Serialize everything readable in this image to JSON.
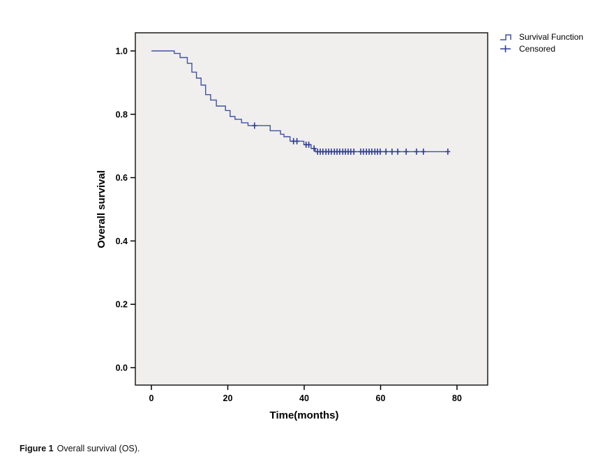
{
  "figure": {
    "caption_label": "Figure 1",
    "caption_text": "Overall survival (OS)."
  },
  "chart_data": {
    "type": "line",
    "subtype": "kaplan-meier-step",
    "title": "",
    "xlabel": "Time(months)",
    "ylabel": "Overall survival",
    "xlim": [
      -4,
      88
    ],
    "ylim": [
      -0.05,
      1.06
    ],
    "xticks": [
      0,
      20,
      40,
      60,
      80
    ],
    "xtick_labels": [
      "0",
      "20",
      "40",
      "60",
      "80"
    ],
    "yticks": [
      0.0,
      0.2,
      0.4,
      0.6,
      0.8,
      1.0
    ],
    "ytick_labels": [
      "0.0",
      "0.2",
      "0.4",
      "0.6",
      "0.8",
      "1.0"
    ],
    "grid": "off",
    "legend_position": "outside-top-right",
    "legend": [
      {
        "label": "Survival Function",
        "marker": "step-line"
      },
      {
        "label": "Censored",
        "marker": "plus"
      }
    ],
    "line_color": "#3f51a3",
    "censor_color": "#2e3c96",
    "plot_bg": "#f0efee",
    "frame_color": "#1c1c1c",
    "survival_steps": [
      [
        0,
        1.0
      ],
      [
        6.0,
        0.992
      ],
      [
        7.5,
        0.979
      ],
      [
        9.4,
        0.961
      ],
      [
        10.6,
        0.933
      ],
      [
        11.8,
        0.914
      ],
      [
        13.0,
        0.892
      ],
      [
        14.2,
        0.862
      ],
      [
        15.5,
        0.845
      ],
      [
        17.0,
        0.826
      ],
      [
        19.4,
        0.812
      ],
      [
        20.6,
        0.793
      ],
      [
        21.9,
        0.784
      ],
      [
        23.6,
        0.773
      ],
      [
        25.3,
        0.764
      ],
      [
        31.1,
        0.748
      ],
      [
        33.8,
        0.737
      ],
      [
        34.7,
        0.729
      ],
      [
        36.3,
        0.715
      ],
      [
        39.9,
        0.704
      ],
      [
        41.8,
        0.692
      ],
      [
        42.9,
        0.682
      ]
    ],
    "curve_end_time": 77.6,
    "censored": [
      [
        27.0,
        0.764
      ],
      [
        37.2,
        0.715
      ],
      [
        38.1,
        0.715
      ],
      [
        40.5,
        0.704
      ],
      [
        41.2,
        0.704
      ],
      [
        42.6,
        0.692
      ],
      [
        43.5,
        0.682
      ],
      [
        44.2,
        0.682
      ],
      [
        44.9,
        0.682
      ],
      [
        45.7,
        0.682
      ],
      [
        46.4,
        0.682
      ],
      [
        47.1,
        0.682
      ],
      [
        47.9,
        0.682
      ],
      [
        48.6,
        0.682
      ],
      [
        49.3,
        0.682
      ],
      [
        50.1,
        0.682
      ],
      [
        50.8,
        0.682
      ],
      [
        51.5,
        0.682
      ],
      [
        52.2,
        0.682
      ],
      [
        53.0,
        0.682
      ],
      [
        54.8,
        0.682
      ],
      [
        55.5,
        0.682
      ],
      [
        56.3,
        0.682
      ],
      [
        57.0,
        0.682
      ],
      [
        57.7,
        0.682
      ],
      [
        58.5,
        0.682
      ],
      [
        59.2,
        0.682
      ],
      [
        59.9,
        0.682
      ],
      [
        61.4,
        0.682
      ],
      [
        63.0,
        0.682
      ],
      [
        64.5,
        0.682
      ],
      [
        66.7,
        0.682
      ],
      [
        69.4,
        0.682
      ],
      [
        71.2,
        0.682
      ],
      [
        77.6,
        0.682
      ]
    ]
  }
}
